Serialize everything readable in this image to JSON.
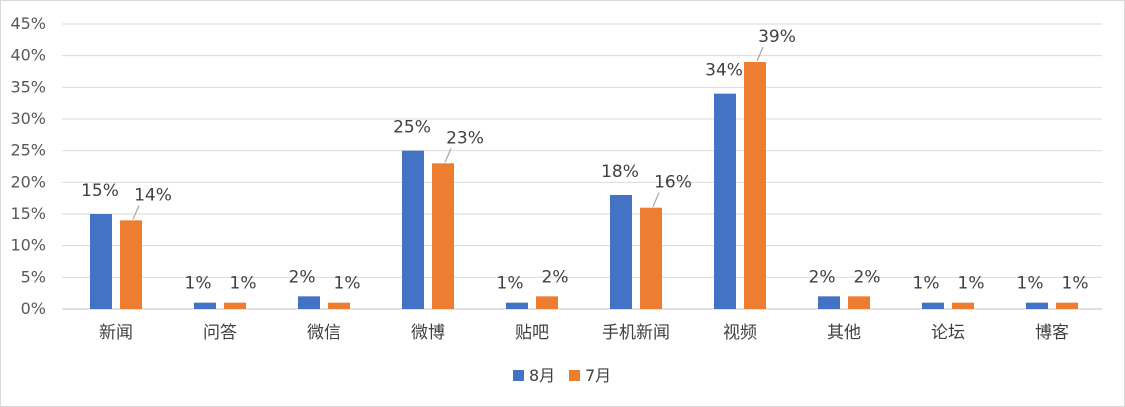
{
  "chart_data": {
    "type": "bar",
    "categories": [
      "新闻",
      "问答",
      "微信",
      "微博",
      "贴吧",
      "手机新闻",
      "视频",
      "其他",
      "论坛",
      "博客"
    ],
    "series": [
      {
        "name": "8月",
        "color": "#4472c4",
        "values": [
          15,
          1,
          2,
          25,
          1,
          18,
          34,
          2,
          1,
          1
        ],
        "labels": [
          "15%",
          "1%",
          "2%",
          "25%",
          "1%",
          "18%",
          "34%",
          "2%",
          "1%",
          "1%"
        ]
      },
      {
        "name": "7月",
        "color": "#ed7d31",
        "values": [
          14,
          1,
          1,
          23,
          2,
          16,
          39,
          2,
          1,
          1
        ],
        "labels": [
          "14%",
          "1%",
          "1%",
          "23%",
          "2%",
          "16%",
          "39%",
          "2%",
          "1%",
          "1%"
        ]
      }
    ],
    "ylim": [
      0,
      45
    ],
    "ytick_step": 5,
    "ytick_labels": [
      "0%",
      "5%",
      "10%",
      "15%",
      "20%",
      "25%",
      "30%",
      "35%",
      "40%",
      "45%"
    ],
    "grid": true,
    "legend_position": "bottom",
    "title": "",
    "xlabel": "",
    "ylabel": ""
  }
}
